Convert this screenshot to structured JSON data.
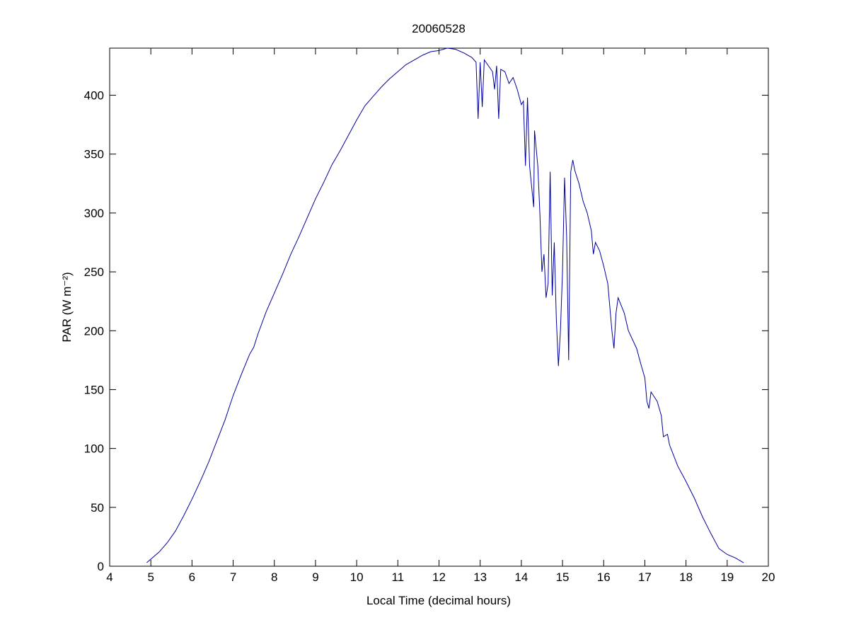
{
  "chart_data": {
    "type": "line",
    "title": "20060528",
    "xlabel": "Local Time (decimal hours)",
    "ylabel": "PAR (W m⁻²)",
    "xlim": [
      4,
      20
    ],
    "xticks": [
      4,
      5,
      6,
      7,
      8,
      9,
      10,
      11,
      12,
      13,
      14,
      15,
      16,
      17,
      18,
      19,
      20
    ],
    "ylim": [
      0,
      440
    ],
    "yticks": [
      0,
      50,
      100,
      150,
      200,
      250,
      300,
      350,
      400
    ],
    "grid": false,
    "series": [
      {
        "name": "PAR",
        "color": "#0000a0",
        "x": [
          4.9,
          5.0,
          5.2,
          5.4,
          5.6,
          5.8,
          6.0,
          6.2,
          6.4,
          6.6,
          6.8,
          7.0,
          7.2,
          7.4,
          7.5,
          7.6,
          7.8,
          8.0,
          8.2,
          8.4,
          8.6,
          8.8,
          9.0,
          9.2,
          9.4,
          9.6,
          9.8,
          10.0,
          10.2,
          10.4,
          10.6,
          10.8,
          11.0,
          11.2,
          11.4,
          11.6,
          11.8,
          12.0,
          12.2,
          12.4,
          12.6,
          12.8,
          12.9,
          12.95,
          13.0,
          13.05,
          13.1,
          13.3,
          13.35,
          13.4,
          13.45,
          13.5,
          13.6,
          13.7,
          13.8,
          13.9,
          14.0,
          14.05,
          14.1,
          14.15,
          14.2,
          14.3,
          14.32,
          14.4,
          14.45,
          14.5,
          14.55,
          14.6,
          14.65,
          14.7,
          14.75,
          14.8,
          14.85,
          14.9,
          14.95,
          15.0,
          15.05,
          15.1,
          15.15,
          15.2,
          15.25,
          15.3,
          15.4,
          15.5,
          15.6,
          15.7,
          15.75,
          15.8,
          15.9,
          16.0,
          16.1,
          16.2,
          16.25,
          16.3,
          16.35,
          16.5,
          16.6,
          16.8,
          16.9,
          17.0,
          17.05,
          17.1,
          17.15,
          17.3,
          17.4,
          17.45,
          17.55,
          17.6,
          17.8,
          18.0,
          18.2,
          18.4,
          18.6,
          18.8,
          19.0,
          19.2,
          19.4
        ],
        "values": [
          3,
          6,
          12,
          20,
          30,
          43,
          57,
          72,
          88,
          106,
          124,
          145,
          163,
          180,
          186,
          197,
          216,
          232,
          248,
          265,
          280,
          296,
          312,
          326,
          341,
          353,
          366,
          379,
          391,
          399,
          407,
          414,
          420,
          426,
          430,
          434,
          437,
          438,
          440,
          439,
          436,
          432,
          428,
          380,
          428,
          390,
          430,
          420,
          405,
          425,
          380,
          422,
          420,
          410,
          415,
          405,
          392,
          395,
          340,
          398,
          340,
          305,
          370,
          340,
          300,
          250,
          265,
          228,
          240,
          335,
          230,
          275,
          210,
          170,
          200,
          250,
          330,
          280,
          175,
          335,
          345,
          336,
          325,
          310,
          300,
          285,
          265,
          275,
          268,
          255,
          240,
          200,
          185,
          215,
          228,
          215,
          200,
          185,
          172,
          160,
          140,
          134,
          148,
          140,
          128,
          110,
          112,
          103,
          85,
          72,
          58,
          42,
          28,
          15,
          10,
          7,
          3
        ]
      }
    ]
  }
}
